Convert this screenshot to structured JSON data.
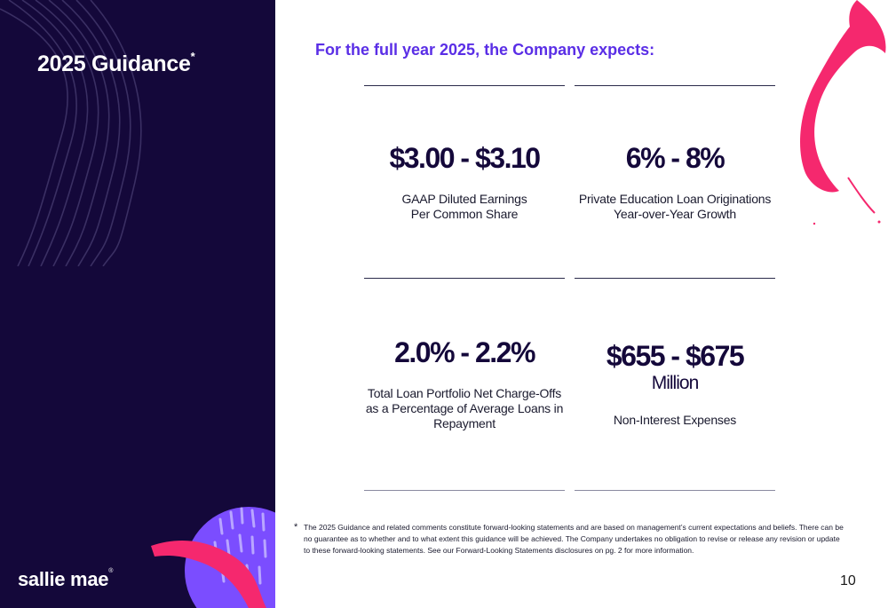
{
  "sidebar": {
    "title": "2025 Guidance",
    "title_mark": "*",
    "logo_text": "sallie mae",
    "logo_mark": "®"
  },
  "headline": "For the full year 2025, the Company expects:",
  "metrics": [
    {
      "value": "$3.00 - $3.10",
      "label_line1": "GAAP Diluted Earnings",
      "label_line2": "Per Common Share"
    },
    {
      "value": "6% - 8%",
      "label_line1": "Private Education Loan Originations",
      "label_line2": "Year-over-Year Growth"
    },
    {
      "value": "2.0% - 2.2%",
      "label_line1": "Total Loan Portfolio Net Charge-Offs",
      "label_line2": "as a Percentage of Average Loans in",
      "label_line3": "Repayment"
    },
    {
      "value": "$655 - $675",
      "unit": "Million",
      "label_line1": "Non-Interest Expenses"
    }
  ],
  "footnote": {
    "marker": "*",
    "text": "The 2025 Guidance and related comments constitute forward-looking statements and are based on management’s current expectations and beliefs.  There can be no guarantee as to whether and to what extent this guidance will be achieved.  The Company undertakes no obligation to revise or release any revision or update to these forward-looking statements.  See our Forward-Looking Statements disclosures on pg. 2 for more information."
  },
  "page_number": "10",
  "colors": {
    "sidebar_bg": "#14083a",
    "headline": "#5a2ee6",
    "accent_pink": "#f5286e",
    "accent_purple": "#7b4dff"
  }
}
